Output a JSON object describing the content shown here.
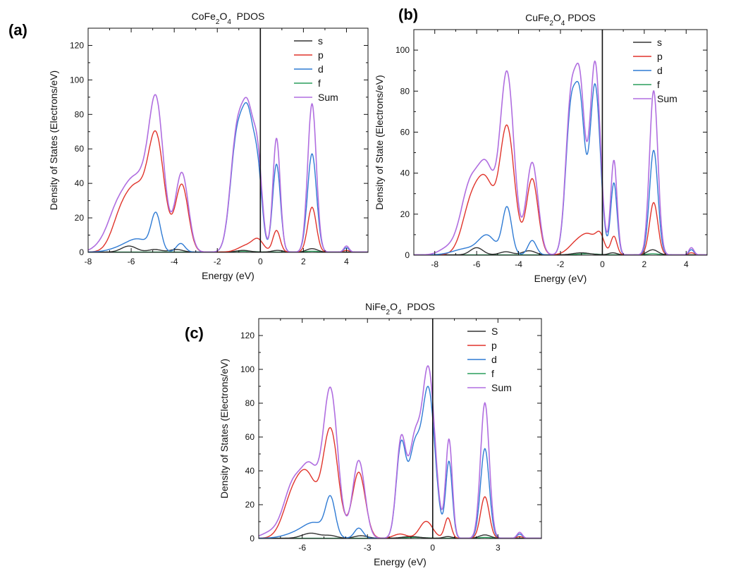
{
  "colors": {
    "s": "#333333",
    "p": "#e0342b",
    "d": "#2f7bd4",
    "f": "#2a9d5c",
    "Sum": "#b06ee0"
  },
  "chart_data": [
    {
      "type": "line",
      "panel_label": "(a)",
      "title_parts": [
        "CoFe",
        "2",
        "O",
        "4",
        "  PDOS"
      ],
      "xlabel": "Energy (eV)",
      "ylabel": "Density of States (Electrons/eV)",
      "xlim": [
        -8,
        5
      ],
      "ylim": [
        0,
        130
      ],
      "xticks": [
        -8,
        -6,
        -4,
        -2,
        0,
        2,
        4
      ],
      "yticks": [
        0,
        20,
        40,
        60,
        80,
        100,
        120
      ],
      "fermi": 0,
      "legend_labels": [
        "s",
        "p",
        "d",
        "f",
        "Sum"
      ],
      "series": [
        {
          "name": "s",
          "peaks": [
            [
              -6.1,
              3.5,
              0.35
            ],
            [
              -4.9,
              1.5,
              0.3
            ],
            [
              -3.9,
              1.5,
              0.3
            ],
            [
              -0.8,
              1,
              0.3
            ],
            [
              0.8,
              1,
              0.25
            ],
            [
              2.4,
              2,
              0.25
            ]
          ]
        },
        {
          "name": "p",
          "peaks": [
            [
              -6.4,
              24,
              0.45
            ],
            [
              -5.7,
              28,
              0.4
            ],
            [
              -4.85,
              67,
              0.38
            ],
            [
              -3.65,
              39,
              0.3
            ],
            [
              -0.6,
              4,
              0.4
            ],
            [
              -0.1,
              6,
              0.25
            ],
            [
              0.75,
              12.5,
              0.17
            ],
            [
              2.4,
              26,
              0.2
            ],
            [
              4.0,
              1,
              0.15
            ]
          ]
        },
        {
          "name": "d",
          "peaks": [
            [
              -6.3,
              3,
              0.6
            ],
            [
              -5.6,
              6,
              0.5
            ],
            [
              -4.85,
              21,
              0.22
            ],
            [
              -3.7,
              5,
              0.2
            ],
            [
              -1.1,
              62,
              0.3
            ],
            [
              -0.55,
              70,
              0.28
            ],
            [
              -0.1,
              35,
              0.2
            ],
            [
              0.75,
              51,
              0.18
            ],
            [
              2.4,
              57,
              0.21
            ],
            [
              4.0,
              2.5,
              0.12
            ]
          ]
        },
        {
          "name": "f",
          "peaks": [
            [
              -0.8,
              0.5,
              0.5
            ],
            [
              2.4,
              0.5,
              0.3
            ]
          ]
        },
        {
          "name": "Sum",
          "peaks": [
            [
              -7.4,
              3,
              0.4
            ],
            [
              -6.6,
              26,
              0.45
            ],
            [
              -5.9,
              30,
              0.38
            ],
            [
              -5.45,
              17,
              0.3
            ],
            [
              -4.85,
              88,
              0.35
            ],
            [
              -3.65,
              46,
              0.3
            ],
            [
              -1.1,
              65,
              0.3
            ],
            [
              -0.55,
              72,
              0.28
            ],
            [
              -0.1,
              42,
              0.2
            ],
            [
              0.75,
              66,
              0.17
            ],
            [
              2.4,
              86,
              0.2
            ],
            [
              4.0,
              3.5,
              0.12
            ]
          ]
        }
      ]
    },
    {
      "type": "line",
      "panel_label": "(b)",
      "title_parts": [
        "CuFe",
        "2",
        "O",
        "4",
        " PDOS"
      ],
      "xlabel": "Energy (eV)",
      "ylabel": "Density of State (Electrons/eV)",
      "xlim": [
        -9,
        5
      ],
      "ylim": [
        0,
        110
      ],
      "xticks": [
        -8,
        -6,
        -4,
        -2,
        0,
        2,
        4
      ],
      "yticks": [
        0,
        20,
        40,
        60,
        80,
        100
      ],
      "fermi": 0,
      "legend_labels": [
        "s",
        "p",
        "d",
        "f",
        "Sum"
      ],
      "series": [
        {
          "name": "s",
          "peaks": [
            [
              -6.0,
              3.5,
              0.3
            ],
            [
              -4.6,
              1.5,
              0.3
            ],
            [
              -3.5,
              2,
              0.3
            ],
            [
              -1,
              1,
              0.4
            ],
            [
              0.5,
              1,
              0.2
            ],
            [
              2.4,
              2.5,
              0.25
            ]
          ]
        },
        {
          "name": "p",
          "peaks": [
            [
              -6.2,
              27,
              0.45
            ],
            [
              -5.5,
              28,
              0.38
            ],
            [
              -4.55,
              62,
              0.35
            ],
            [
              -3.35,
              37,
              0.28
            ],
            [
              -1.2,
              6,
              0.4
            ],
            [
              -0.6,
              8,
              0.35
            ],
            [
              -0.1,
              8,
              0.2
            ],
            [
              0.55,
              9,
              0.15
            ],
            [
              2.45,
              25.5,
              0.2
            ],
            [
              4.25,
              1,
              0.15
            ]
          ]
        },
        {
          "name": "d",
          "peaks": [
            [
              -6.5,
              3,
              0.6
            ],
            [
              -5.5,
              9,
              0.4
            ],
            [
              -4.55,
              23,
              0.22
            ],
            [
              -3.35,
              7,
              0.2
            ],
            [
              -1.5,
              69,
              0.25
            ],
            [
              -1.05,
              64,
              0.22
            ],
            [
              -0.35,
              83,
              0.25
            ],
            [
              0.55,
              35,
              0.15
            ],
            [
              2.45,
              51,
              0.2
            ],
            [
              4.25,
              2.5,
              0.12
            ]
          ]
        },
        {
          "name": "f",
          "peaks": [
            [
              -0.7,
              0.5,
              0.5
            ],
            [
              2.4,
              0.5,
              0.3
            ]
          ]
        },
        {
          "name": "Sum",
          "peaks": [
            [
              -7.4,
              3,
              0.4
            ],
            [
              -6.3,
              34,
              0.45
            ],
            [
              -5.5,
              37,
              0.38
            ],
            [
              -4.55,
              88,
              0.33
            ],
            [
              -3.35,
              45,
              0.28
            ],
            [
              -1.5,
              74,
              0.25
            ],
            [
              -1.05,
              72,
              0.22
            ],
            [
              -0.35,
              94,
              0.25
            ],
            [
              0.55,
              46,
              0.15
            ],
            [
              2.45,
              80,
              0.2
            ],
            [
              4.25,
              3.5,
              0.12
            ]
          ]
        }
      ]
    },
    {
      "type": "line",
      "panel_label": "(c)",
      "title_parts": [
        "NiFe",
        "2",
        "O",
        "4",
        "  PDOS"
      ],
      "xlabel": "Energy (eV)",
      "ylabel": "Density of States (Electrons/eV)",
      "xlim": [
        -8,
        5
      ],
      "ylim": [
        0,
        130
      ],
      "xticks": [
        -6,
        -3,
        0,
        3
      ],
      "yticks": [
        0,
        20,
        40,
        60,
        80,
        100,
        120
      ],
      "fermi": 0,
      "legend_labels": [
        "S",
        "p",
        "d",
        "f",
        "Sum"
      ],
      "series": [
        {
          "name": "s",
          "peaks": [
            [
              -5.6,
              3,
              0.4
            ],
            [
              -4.7,
              1.5,
              0.3
            ],
            [
              -3.3,
              1.5,
              0.3
            ],
            [
              -1,
              1,
              0.4
            ],
            [
              0.7,
              1,
              0.2
            ],
            [
              2.4,
              2,
              0.25
            ]
          ]
        },
        {
          "name": "p",
          "peaks": [
            [
              -6.4,
              26,
              0.45
            ],
            [
              -5.7,
              30,
              0.4
            ],
            [
              -4.7,
              64,
              0.35
            ],
            [
              -3.4,
              39,
              0.3
            ],
            [
              -1.5,
              2.5,
              0.3
            ],
            [
              -0.3,
              10,
              0.3
            ],
            [
              0.7,
              12,
              0.15
            ],
            [
              2.4,
              24.5,
              0.2
            ],
            [
              4.0,
              1,
              0.15
            ]
          ]
        },
        {
          "name": "d",
          "peaks": [
            [
              -6.2,
              3,
              0.6
            ],
            [
              -5.4,
              8,
              0.5
            ],
            [
              -4.7,
              22,
              0.22
            ],
            [
              -3.4,
              6,
              0.2
            ],
            [
              -1.45,
              55,
              0.22
            ],
            [
              -0.85,
              48,
              0.25
            ],
            [
              -0.2,
              88,
              0.3
            ],
            [
              0.75,
              45,
              0.15
            ],
            [
              2.4,
              53,
              0.2
            ],
            [
              4.0,
              2.5,
              0.12
            ]
          ]
        },
        {
          "name": "f",
          "peaks": [
            [
              -0.8,
              0.5,
              0.5
            ],
            [
              2.4,
              0.5,
              0.3
            ]
          ]
        },
        {
          "name": "Sum",
          "peaks": [
            [
              -7.5,
              3,
              0.4
            ],
            [
              -6.4,
              32,
              0.45
            ],
            [
              -5.6,
              36,
              0.38
            ],
            [
              -4.7,
              87,
              0.33
            ],
            [
              -3.4,
              46,
              0.28
            ],
            [
              -1.45,
              58,
              0.22
            ],
            [
              -0.85,
              52,
              0.25
            ],
            [
              -0.2,
              100,
              0.3
            ],
            [
              0.75,
              58,
              0.15
            ],
            [
              2.4,
              80,
              0.2
            ],
            [
              4.0,
              3.5,
              0.12
            ]
          ]
        }
      ]
    }
  ]
}
